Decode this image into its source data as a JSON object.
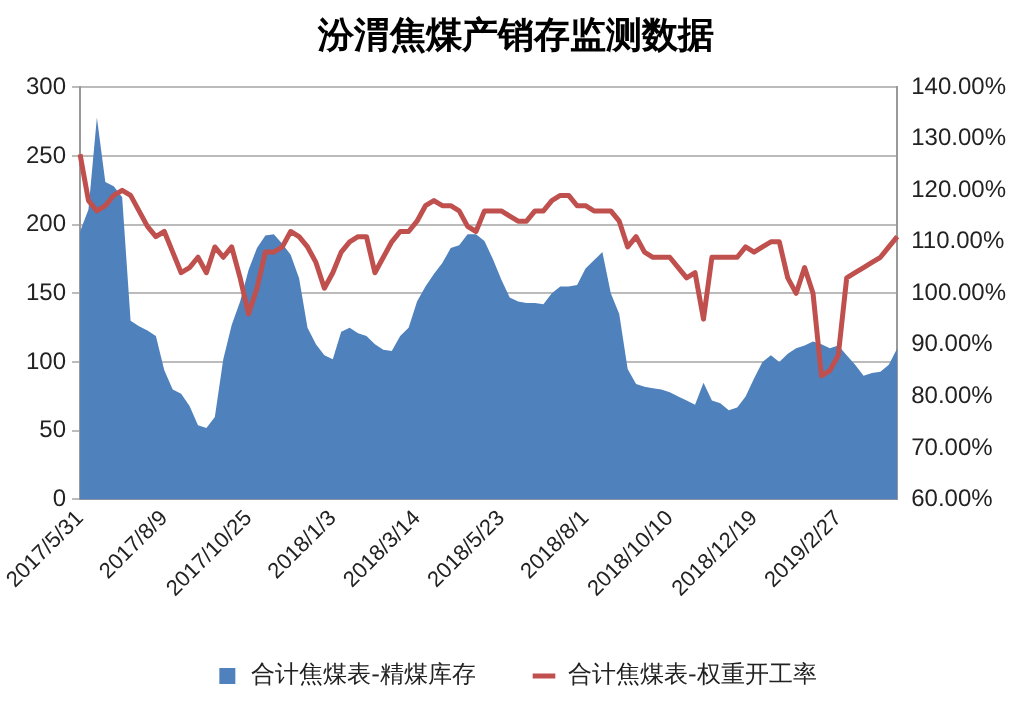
{
  "chart_data": {
    "type": "area",
    "title": "汾渭焦煤产销存监测数据",
    "categories": [
      "2017/5/31",
      null,
      null,
      null,
      null,
      null,
      null,
      null,
      null,
      null,
      "2017/8/9",
      null,
      null,
      null,
      null,
      null,
      null,
      null,
      null,
      null,
      "2017/10/25",
      null,
      null,
      null,
      null,
      null,
      null,
      null,
      null,
      null,
      "2018/1/3",
      null,
      null,
      null,
      null,
      null,
      null,
      null,
      null,
      null,
      "2018/3/14",
      null,
      null,
      null,
      null,
      null,
      null,
      null,
      null,
      null,
      "2018/5/23",
      null,
      null,
      null,
      null,
      null,
      null,
      null,
      null,
      null,
      "2018/8/1",
      null,
      null,
      null,
      null,
      null,
      null,
      null,
      null,
      null,
      "2018/10/10",
      null,
      null,
      null,
      null,
      null,
      null,
      null,
      null,
      null,
      "2018/12/19",
      null,
      null,
      null,
      null,
      null,
      null,
      null,
      null,
      null,
      "2019/2/27",
      null,
      null,
      null,
      null,
      null,
      null,
      null
    ],
    "series": [
      {
        "name": "合计焦煤表-精煤库存",
        "axis": "y",
        "color": "#4f81bd",
        "values": [
          195,
          211,
          278,
          231,
          228,
          220,
          130,
          126,
          123,
          119,
          94,
          80,
          77,
          68,
          54,
          52,
          60,
          102,
          127,
          144,
          167,
          183,
          192,
          193,
          186,
          178,
          161,
          125,
          113,
          105,
          102,
          122,
          125,
          121,
          119,
          113,
          109,
          108,
          119,
          125,
          144,
          155,
          164,
          172,
          183,
          185,
          193,
          193,
          188,
          175,
          160,
          147,
          144,
          143,
          143,
          142,
          150,
          155,
          155,
          156,
          168,
          174,
          180,
          150,
          135,
          95,
          84,
          82,
          81,
          80,
          78,
          75,
          72,
          69,
          85,
          72,
          70,
          65,
          67,
          75,
          88,
          100,
          105,
          100,
          106,
          110,
          112,
          115,
          113,
          110,
          112,
          105,
          98,
          90,
          92,
          93,
          98,
          110
        ]
      },
      {
        "name": "合计焦煤表-权重开工率",
        "type": "line",
        "axis": "y2",
        "color": "#c0504d",
        "values": [
          127,
          118,
          116,
          117,
          119,
          120,
          119,
          116,
          113,
          111,
          112,
          108,
          104,
          105,
          107,
          104,
          109,
          107,
          109,
          103,
          96,
          101,
          108,
          108,
          109,
          112,
          111,
          109,
          106,
          101,
          104,
          108,
          110,
          111,
          111,
          104,
          107,
          110,
          112,
          112,
          114,
          117,
          118,
          117,
          117,
          116,
          113,
          112,
          116,
          116,
          116,
          115,
          114,
          114,
          116,
          116,
          118,
          119,
          119,
          117,
          117,
          116,
          116,
          116,
          114,
          109,
          111,
          108,
          107,
          107,
          107,
          105,
          103,
          104,
          95,
          107,
          107,
          107,
          107,
          109,
          108,
          109,
          110,
          110,
          103,
          100,
          105,
          100,
          84,
          85,
          88,
          103,
          104,
          105,
          106,
          107,
          109,
          111
        ]
      }
    ],
    "ylim": [
      0,
      300
    ],
    "yticks": [
      0,
      50,
      100,
      150,
      200,
      250,
      300
    ],
    "y2lim": [
      60,
      140
    ],
    "y2ticks": [
      {
        "value": 60,
        "label": "60.00%"
      },
      {
        "value": 70,
        "label": "70.00%"
      },
      {
        "value": 80,
        "label": "80.00%"
      },
      {
        "value": 90,
        "label": "90.00%"
      },
      {
        "value": 100,
        "label": "100.00%"
      },
      {
        "value": 110,
        "label": "110.00%"
      },
      {
        "value": 120,
        "label": "120.00%"
      },
      {
        "value": 130,
        "label": "130.00%"
      },
      {
        "value": 140,
        "label": "140.00%"
      }
    ],
    "grid": "y",
    "legend": "bottom",
    "marker": "none"
  }
}
